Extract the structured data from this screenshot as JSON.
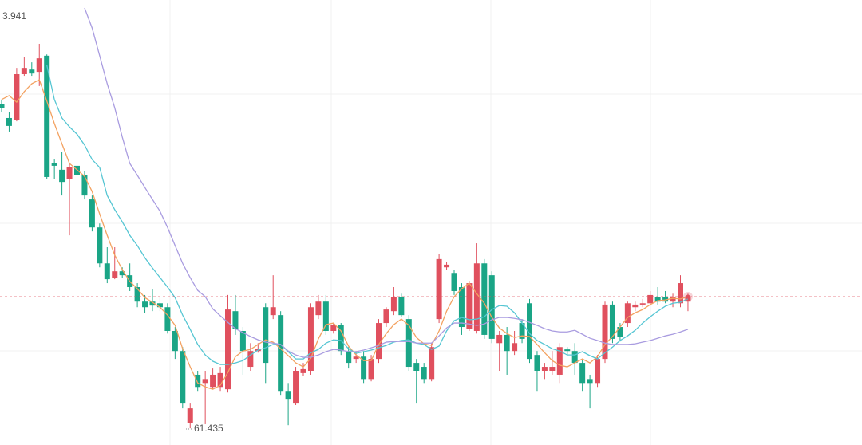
{
  "chart_data": {
    "type": "candlestick",
    "up_color": "#e0505e",
    "down_color": "#1aa586",
    "ylim": [
      60.93,
      74.43
    ],
    "open": [
      71.28,
      70.85,
      70.8,
      72.18,
      72.32,
      72.25,
      72.74,
      69.47,
      69.28,
      68.99,
      69.4,
      69.11,
      68.38,
      67.53,
      66.44,
      66.01,
      66.2,
      66.08,
      65.72,
      65.28,
      65.28,
      65.23,
      65.11,
      64.39,
      63.78,
      61.6,
      63.06,
      62.81,
      62.69,
      62.69,
      62.62,
      64.99,
      64.39,
      63.3,
      63.78,
      65.11,
      64.87,
      64.87,
      62.57,
      62.21,
      63.11,
      63.18,
      64.87,
      65.28,
      64.39,
      64.56,
      63.78,
      63.54,
      63.61,
      62.93,
      63.54,
      64.63,
      64.99,
      65.43,
      64.75,
      63.42,
      63.3,
      62.93,
      64.75,
      66.32,
      66.15,
      65.72,
      64.46,
      64.39,
      66.44,
      66.08,
      64.02,
      64.27,
      63.78,
      64.63,
      65.23,
      63.66,
      63.18,
      63.18,
      63.06,
      63.83,
      63.78,
      63.42,
      62.93,
      62.81,
      63.54,
      65.19,
      64.51,
      64.63,
      65.11,
      65.19,
      65.23,
      65.43,
      65.43,
      65.28,
      65.23,
      65.28
    ],
    "high": [
      71.41,
      71.04,
      72.37,
      72.69,
      72.54,
      73.1,
      72.78,
      69.59,
      69.83,
      69.47,
      69.47,
      69.23,
      68.5,
      67.65,
      66.93,
      66.93,
      66.32,
      66.44,
      65.84,
      65.48,
      65.67,
      65.43,
      65.23,
      64.51,
      63.9,
      62.21,
      63.18,
      63.18,
      63.25,
      63.3,
      65.48,
      65.48,
      64.51,
      64.02,
      64.02,
      65.23,
      66.08,
      64.99,
      62.81,
      63.3,
      63.42,
      65.23,
      65.48,
      65.48,
      64.63,
      64.63,
      63.9,
      63.78,
      63.78,
      63.66,
      64.75,
      65.11,
      65.72,
      65.52,
      64.87,
      63.54,
      63.42,
      64.02,
      66.73,
      66.49,
      66.25,
      65.84,
      65.91,
      67.05,
      66.57,
      66.2,
      64.39,
      64.51,
      64.39,
      64.75,
      65.36,
      63.78,
      63.42,
      63.78,
      64.02,
      63.9,
      64.02,
      63.54,
      63.06,
      63.66,
      65.28,
      65.28,
      64.63,
      65.28,
      65.28,
      65.36,
      65.6,
      65.72,
      65.6,
      65.52,
      66.08,
      65.52
    ],
    "low": [
      71.04,
      70.44,
      70.75,
      72.13,
      72.13,
      71.82,
      68.99,
      68.99,
      68.5,
      67.29,
      68.99,
      68.38,
      67.41,
      66.32,
      65.84,
      65.96,
      66.01,
      65.6,
      65.11,
      64.94,
      64.99,
      64.99,
      64.31,
      63.54,
      62.04,
      61.435,
      62.57,
      61.56,
      62.62,
      62.57,
      62.52,
      64.27,
      63.06,
      63.18,
      63.73,
      62.81,
      64.75,
      62.45,
      61.53,
      62.14,
      63.01,
      63.06,
      64.75,
      64.27,
      64.31,
      63.66,
      63.25,
      63.42,
      62.81,
      62.86,
      63.42,
      64.51,
      64.87,
      64.8,
      63.18,
      62.21,
      62.81,
      62.86,
      64.63,
      66.25,
      65.48,
      64.27,
      64.39,
      64.31,
      64.15,
      64.02,
      63.18,
      63.06,
      63.66,
      64.02,
      63.42,
      62.57,
      62.93,
      63.06,
      62.81,
      63.66,
      63.06,
      62.57,
      62.04,
      62.69,
      63.42,
      64.02,
      64.07,
      64.51,
      64.99,
      65.11,
      65.16,
      65.19,
      65.23,
      65.11,
      65.11,
      64.99
    ],
    "close": [
      71.16,
      70.61,
      72.18,
      72.37,
      72.2,
      72.66,
      69.06,
      69.4,
      68.91,
      69.35,
      69.11,
      68.5,
      67.53,
      66.44,
      65.96,
      66.2,
      66.08,
      65.72,
      65.28,
      65.11,
      65.16,
      65.11,
      64.39,
      63.78,
      62.21,
      62.04,
      62.69,
      62.93,
      63.06,
      63.11,
      65.04,
      64.46,
      63.78,
      63.78,
      63.85,
      63.42,
      65.11,
      62.57,
      62.33,
      63.18,
      63.23,
      65.11,
      65.28,
      64.39,
      64.56,
      63.78,
      63.42,
      63.61,
      62.93,
      63.54,
      64.63,
      65.04,
      65.43,
      64.87,
      63.3,
      63.18,
      62.93,
      63.9,
      66.57,
      66.4,
      65.6,
      64.51,
      65.84,
      66.44,
      64.27,
      64.15,
      64.27,
      63.78,
      64.02,
      64.15,
      63.54,
      63.18,
      63.3,
      63.3,
      63.9,
      63.78,
      63.42,
      62.81,
      62.81,
      63.54,
      65.19,
      64.15,
      64.22,
      65.23,
      65.19,
      65.23,
      65.48,
      65.28,
      65.28,
      65.43,
      65.84,
      65.43
    ],
    "lines": [
      {
        "color": "#f3a261",
        "values": [
          71.41,
          71.53,
          71.33,
          71.65,
          71.89,
          72.01,
          71.36,
          70.68,
          70.07,
          69.47,
          69.28,
          69.08,
          68.62,
          67.94,
          67.29,
          66.69,
          66.25,
          65.89,
          65.67,
          65.4,
          65.26,
          65.11,
          64.87,
          64.56,
          63.85,
          63.3,
          62.81,
          62.69,
          62.62,
          62.74,
          63.13,
          63.61,
          63.78,
          63.83,
          63.98,
          64.12,
          64.05,
          63.85,
          63.64,
          63.42,
          63.3,
          63.56,
          64.15,
          64.58,
          64.63,
          64.39,
          63.93,
          63.66,
          63.49,
          63.49,
          63.98,
          64.31,
          64.58,
          64.75,
          64.56,
          64.19,
          64.0,
          63.95,
          64.39,
          64.99,
          65.43,
          65.67,
          65.84,
          65.52,
          65.23,
          64.8,
          64.48,
          64.31,
          64.19,
          64.24,
          64.22,
          63.98,
          63.73,
          63.49,
          63.35,
          63.3,
          63.42,
          63.54,
          63.42,
          63.61,
          63.98,
          64.22,
          64.51,
          64.8,
          64.94,
          65.04,
          65.19,
          65.31,
          65.33,
          65.38,
          65.36,
          65.43
        ]
      },
      {
        "color": "#56c6d3",
        "values": [
          null,
          null,
          null,
          null,
          null,
          null,
          72.45,
          71.41,
          70.85,
          70.58,
          70.36,
          70.03,
          69.59,
          69.35,
          68.5,
          68.07,
          67.7,
          67.29,
          66.98,
          66.61,
          66.3,
          66.01,
          65.72,
          65.4,
          64.87,
          64.44,
          63.98,
          63.66,
          63.47,
          63.37,
          63.37,
          63.42,
          63.49,
          63.66,
          63.81,
          63.88,
          63.98,
          63.98,
          63.76,
          63.54,
          63.54,
          63.73,
          63.83,
          64.02,
          64.12,
          64.1,
          63.85,
          63.71,
          63.76,
          63.81,
          63.88,
          63.95,
          64.05,
          64.1,
          64.12,
          64.02,
          63.98,
          63.83,
          63.93,
          64.39,
          64.7,
          64.8,
          64.73,
          64.75,
          64.82,
          65.04,
          65.16,
          65.14,
          64.94,
          64.63,
          64.31,
          64.1,
          63.98,
          63.85,
          63.78,
          63.66,
          63.66,
          63.76,
          63.64,
          63.54,
          63.73,
          63.9,
          64.1,
          64.24,
          64.41,
          64.63,
          64.82,
          64.99,
          65.14,
          65.23,
          65.26,
          65.36
        ]
      },
      {
        "color": "#a99ce0",
        "values": [
          null,
          null,
          null,
          null,
          null,
          null,
          null,
          null,
          null,
          null,
          null,
          74.19,
          73.58,
          72.74,
          71.89,
          71.16,
          70.27,
          69.47,
          69.11,
          68.74,
          68.38,
          68.02,
          67.53,
          66.98,
          66.44,
          66.01,
          65.62,
          65.43,
          65.06,
          64.85,
          64.65,
          64.46,
          64.34,
          64.22,
          64.12,
          64.05,
          64.02,
          63.98,
          63.78,
          63.66,
          63.59,
          63.59,
          63.66,
          63.76,
          63.83,
          63.81,
          63.76,
          63.76,
          63.81,
          63.88,
          63.95,
          64.05,
          64.07,
          64.07,
          64.07,
          64.02,
          64.02,
          64.02,
          64.24,
          64.48,
          64.63,
          64.63,
          64.6,
          64.56,
          64.6,
          64.73,
          64.8,
          64.8,
          64.77,
          64.73,
          64.65,
          64.56,
          64.46,
          64.39,
          64.36,
          64.36,
          64.41,
          64.29,
          64.17,
          64.1,
          64.02,
          63.98,
          63.98,
          63.98,
          64.0,
          64.05,
          64.1,
          64.17,
          64.24,
          64.29,
          64.36,
          64.44
        ]
      }
    ],
    "annotations": [
      "3.941",
      "61.435"
    ]
  }
}
